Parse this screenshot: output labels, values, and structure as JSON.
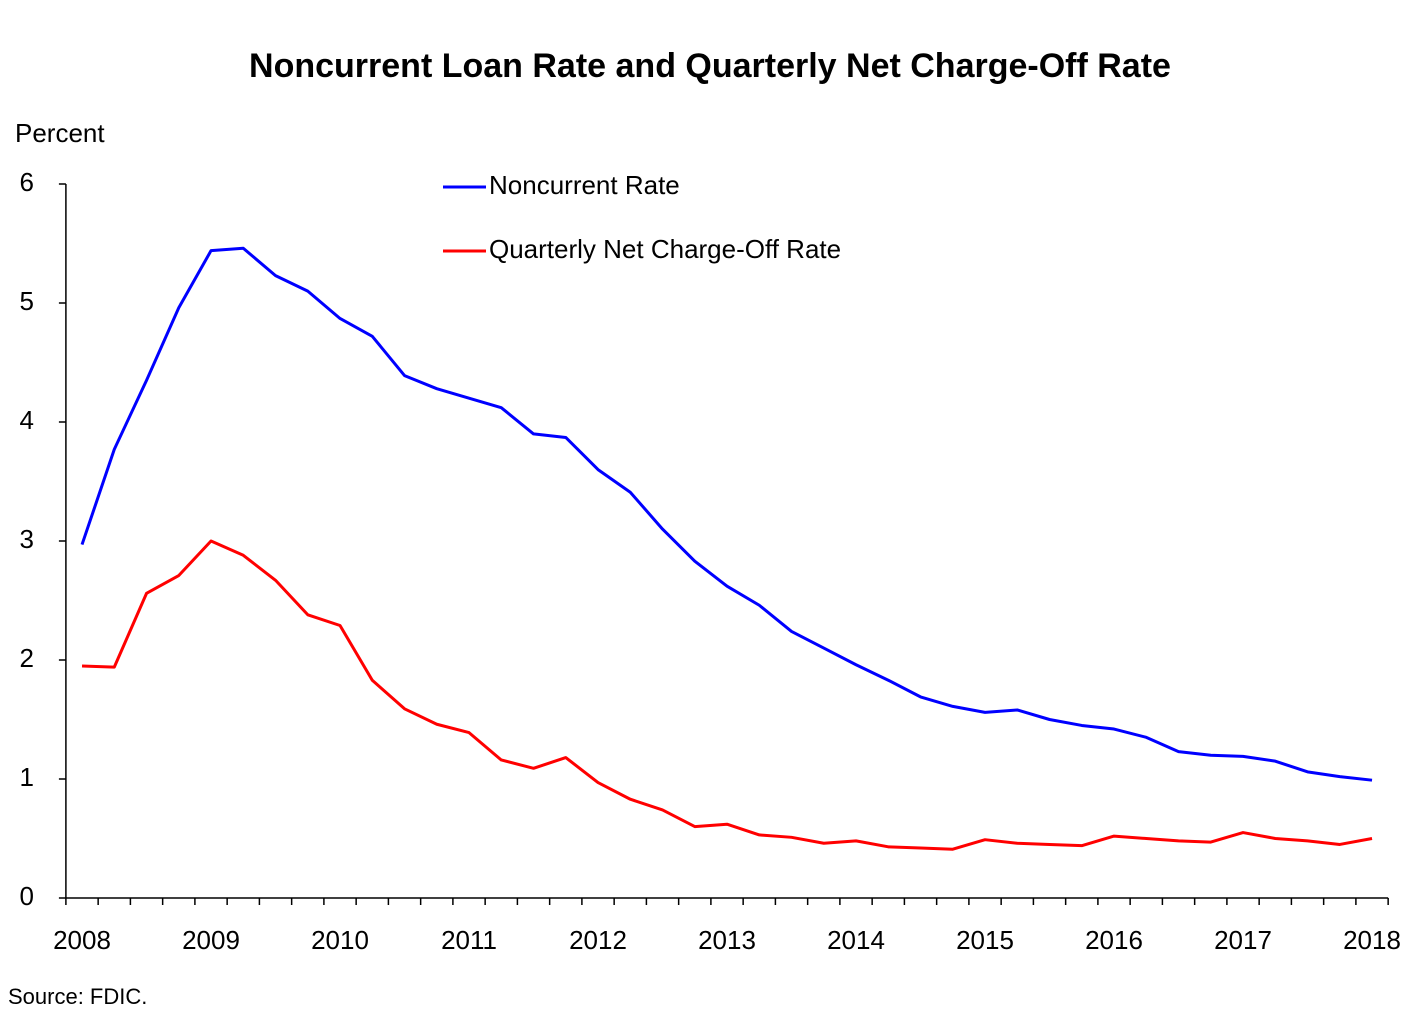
{
  "chart_data": {
    "type": "line",
    "title": "Noncurrent Loan Rate and Quarterly Net Charge-Off Rate",
    "y_label": "Percent",
    "source": "Source:  FDIC.",
    "categories": [
      "2008",
      null,
      null,
      null,
      "2009",
      null,
      null,
      null,
      "2010",
      null,
      null,
      null,
      "2011",
      null,
      null,
      null,
      "2012",
      null,
      null,
      null,
      "2013",
      null,
      null,
      null,
      "2014",
      null,
      null,
      null,
      "2015",
      null,
      null,
      null,
      "2016",
      null,
      null,
      null,
      "2017",
      null,
      null,
      null,
      "2018"
    ],
    "series": [
      {
        "name": "Noncurrent Rate",
        "color": "#0000ff",
        "values": [
          2.97,
          3.77,
          4.35,
          4.96,
          5.44,
          5.46,
          5.23,
          5.1,
          4.87,
          4.72,
          4.39,
          4.28,
          4.2,
          4.12,
          3.9,
          3.87,
          3.6,
          3.41,
          3.1,
          2.83,
          2.62,
          2.46,
          2.24,
          2.1,
          1.96,
          1.83,
          1.69,
          1.61,
          1.56,
          1.58,
          1.5,
          1.45,
          1.42,
          1.35,
          1.23,
          1.2,
          1.19,
          1.15,
          1.06,
          1.02,
          0.99
        ]
      },
      {
        "name": "Quarterly Net Charge-Off Rate",
        "color": "#ff0000",
        "values": [
          1.95,
          1.94,
          2.56,
          2.71,
          3.0,
          2.88,
          2.67,
          2.38,
          2.29,
          1.83,
          1.59,
          1.46,
          1.39,
          1.16,
          1.09,
          1.18,
          0.97,
          0.83,
          0.74,
          0.6,
          0.62,
          0.53,
          0.51,
          0.46,
          0.48,
          0.43,
          0.42,
          0.41,
          0.49,
          0.46,
          0.45,
          0.44,
          0.52,
          0.5,
          0.48,
          0.47,
          0.55,
          0.5,
          0.48,
          0.45,
          0.5
        ]
      }
    ],
    "ylim": [
      0,
      6
    ],
    "yticks": [
      0,
      1,
      2,
      3,
      4,
      5,
      6
    ],
    "grid": false
  }
}
